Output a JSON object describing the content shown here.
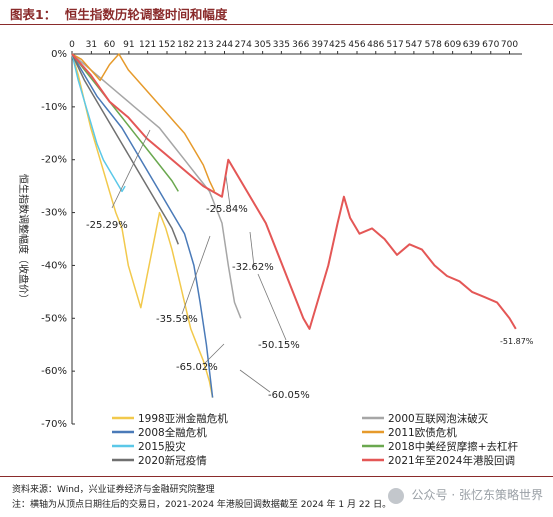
{
  "figure_title": "图表1：  恒生指数历轮调整时间和幅度",
  "chart_data": {
    "type": "line",
    "title": "",
    "xlabel": "",
    "ylabel": "恒生指数调整幅度（收盘价）",
    "xlim": [
      0,
      720
    ],
    "ylim": [
      -70,
      0
    ],
    "x_ticks": [
      0,
      31,
      60,
      91,
      121,
      152,
      182,
      213,
      244,
      274,
      305,
      335,
      366,
      397,
      425,
      456,
      486,
      517,
      547,
      578,
      609,
      639,
      670,
      700
    ],
    "y_ticks": [
      0,
      -10,
      -20,
      -30,
      -40,
      -50,
      -60,
      -70
    ],
    "y_tick_labels": [
      "0%",
      "-10%",
      "-20%",
      "-30%",
      "-40%",
      "-50%",
      "-60%",
      "-70%"
    ],
    "legend_position": "bottom",
    "series": [
      {
        "name": "1998亚洲金融危机",
        "color": "#f2c94c",
        "points": [
          [
            0,
            0
          ],
          [
            10,
            -4
          ],
          [
            20,
            -9
          ],
          [
            30,
            -14
          ],
          [
            40,
            -18
          ],
          [
            50,
            -22
          ],
          [
            60,
            -26
          ],
          [
            70,
            -30
          ],
          [
            80,
            -33
          ],
          [
            90,
            -40
          ],
          [
            100,
            -44
          ],
          [
            110,
            -48
          ],
          [
            120,
            -42
          ],
          [
            130,
            -36
          ],
          [
            140,
            -30
          ],
          [
            150,
            -33
          ],
          [
            160,
            -37
          ],
          [
            170,
            -42
          ],
          [
            180,
            -47
          ],
          [
            190,
            -52
          ],
          [
            200,
            -55
          ],
          [
            210,
            -58
          ],
          [
            220,
            -62
          ],
          [
            225,
            -65
          ]
        ]
      },
      {
        "name": "2000互联网泡沫破灭",
        "color": "#a6a6a6",
        "points": [
          [
            0,
            0
          ],
          [
            20,
            -2
          ],
          [
            40,
            -4
          ],
          [
            60,
            -6
          ],
          [
            80,
            -8
          ],
          [
            100,
            -10
          ],
          [
            120,
            -12
          ],
          [
            140,
            -14
          ],
          [
            160,
            -17
          ],
          [
            180,
            -20
          ],
          [
            200,
            -23
          ],
          [
            220,
            -26
          ],
          [
            240,
            -32
          ],
          [
            250,
            -40
          ],
          [
            260,
            -47
          ],
          [
            270,
            -50
          ]
        ]
      },
      {
        "name": "2008全融危机",
        "color": "#4a7ab8",
        "points": [
          [
            0,
            0
          ],
          [
            20,
            -4
          ],
          [
            40,
            -8
          ],
          [
            60,
            -11
          ],
          [
            80,
            -14
          ],
          [
            100,
            -18
          ],
          [
            120,
            -22
          ],
          [
            140,
            -26
          ],
          [
            160,
            -30
          ],
          [
            180,
            -34
          ],
          [
            195,
            -40
          ],
          [
            205,
            -47
          ],
          [
            215,
            -55
          ],
          [
            225,
            -65
          ]
        ]
      },
      {
        "name": "2011欧债危机",
        "color": "#e69a2b",
        "points": [
          [
            0,
            0
          ],
          [
            15,
            -1
          ],
          [
            30,
            -3
          ],
          [
            45,
            -5
          ],
          [
            60,
            -2
          ],
          [
            75,
            0
          ],
          [
            90,
            -3
          ],
          [
            105,
            -5
          ],
          [
            120,
            -7
          ],
          [
            135,
            -9
          ],
          [
            150,
            -11
          ],
          [
            165,
            -13
          ],
          [
            180,
            -15
          ],
          [
            195,
            -18
          ],
          [
            210,
            -21
          ],
          [
            220,
            -24
          ],
          [
            228,
            -26
          ]
        ]
      },
      {
        "name": "2015股灾",
        "color": "#5bc8e8",
        "points": [
          [
            0,
            0
          ],
          [
            10,
            -5
          ],
          [
            20,
            -9
          ],
          [
            30,
            -13
          ],
          [
            40,
            -17
          ],
          [
            50,
            -20
          ],
          [
            60,
            -22
          ],
          [
            70,
            -24
          ],
          [
            80,
            -26
          ],
          [
            85,
            -25
          ]
        ]
      },
      {
        "name": "2018中美经贸摩擦+去杠杆",
        "color": "#6aa84f",
        "points": [
          [
            0,
            0
          ],
          [
            20,
            -3
          ],
          [
            40,
            -6
          ],
          [
            60,
            -9
          ],
          [
            80,
            -12
          ],
          [
            100,
            -15
          ],
          [
            120,
            -18
          ],
          [
            140,
            -21
          ],
          [
            160,
            -24
          ],
          [
            170,
            -26
          ]
        ]
      },
      {
        "name": "2020新冠疫情",
        "color": "#707070",
        "points": [
          [
            0,
            0
          ],
          [
            20,
            -5
          ],
          [
            40,
            -9
          ],
          [
            60,
            -13
          ],
          [
            80,
            -17
          ],
          [
            100,
            -21
          ],
          [
            120,
            -25
          ],
          [
            140,
            -29
          ],
          [
            160,
            -33
          ],
          [
            170,
            -36
          ]
        ]
      },
      {
        "name": "2021年至2024年港股回调",
        "color": "#e45756",
        "points": [
          [
            0,
            0
          ],
          [
            30,
            -4
          ],
          [
            60,
            -9
          ],
          [
            90,
            -12
          ],
          [
            120,
            -16
          ],
          [
            150,
            -19
          ],
          [
            180,
            -22
          ],
          [
            210,
            -25
          ],
          [
            240,
            -27
          ],
          [
            250,
            -20
          ],
          [
            270,
            -24
          ],
          [
            290,
            -28
          ],
          [
            310,
            -32
          ],
          [
            330,
            -38
          ],
          [
            350,
            -44
          ],
          [
            370,
            -50
          ],
          [
            380,
            -52
          ],
          [
            395,
            -46
          ],
          [
            410,
            -40
          ],
          [
            425,
            -32
          ],
          [
            435,
            -27
          ],
          [
            445,
            -31
          ],
          [
            460,
            -34
          ],
          [
            480,
            -33
          ],
          [
            500,
            -35
          ],
          [
            520,
            -38
          ],
          [
            540,
            -36
          ],
          [
            560,
            -37
          ],
          [
            580,
            -40
          ],
          [
            600,
            -42
          ],
          [
            620,
            -43
          ],
          [
            640,
            -45
          ],
          [
            660,
            -46
          ],
          [
            680,
            -47
          ],
          [
            700,
            -50
          ],
          [
            710,
            -52
          ]
        ]
      }
    ],
    "annotations": [
      "-25.29%",
      "-25.84%",
      "-32.62%",
      "-35.59%",
      "-50.15%",
      "-65.02%",
      "-60.05%",
      "-51.87%"
    ]
  },
  "footer": {
    "source": "资料来源：Wind，兴业证券经济与金融研究院整理",
    "note": "注：横轴为从顶点日期往后的交易日，2021-2024 年港股回调数据截至 2024 年 1 月 22 日。",
    "watermark": "公众号 · 张忆东策略世界"
  }
}
